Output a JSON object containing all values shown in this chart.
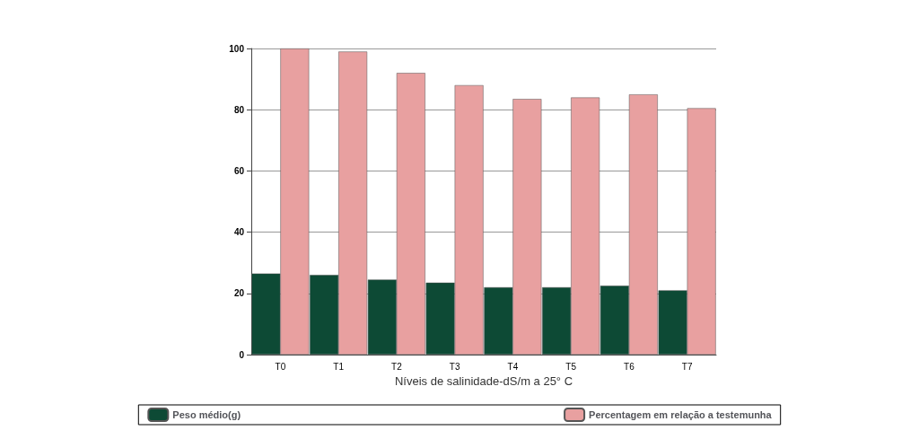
{
  "chart_data": {
    "type": "bar",
    "xlabel": "Níveis de salinidade-dS/m a 25° C",
    "categories": [
      "T0",
      "T1",
      "T2",
      "T3",
      "T4",
      "T5",
      "T6",
      "T7"
    ],
    "series": [
      {
        "name": "Peso médio(g)",
        "color": "#0d4a35",
        "values": [
          26.5,
          26,
          24.5,
          23.5,
          22,
          22,
          22.5,
          21
        ]
      },
      {
        "name": "Percentagem em relação a testemunha",
        "color": "#e8a0a0",
        "values": [
          100,
          99,
          92,
          88,
          83.5,
          84,
          85,
          80.5
        ]
      }
    ],
    "ylim": [
      0,
      100
    ],
    "yticks": [
      0,
      20,
      40,
      60,
      80,
      100
    ],
    "grid": "y",
    "legend": "bottom"
  }
}
